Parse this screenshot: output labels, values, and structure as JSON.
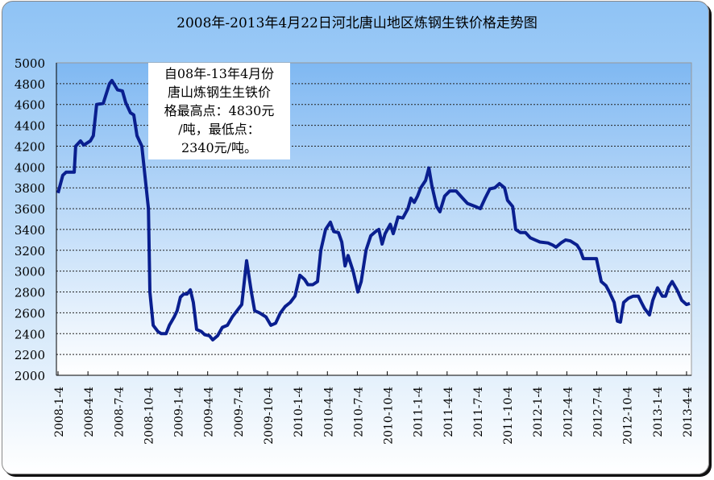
{
  "chart_data": {
    "type": "line",
    "title": "2008年-2013年4月22日河北唐山地区炼钢生铁价格走势图",
    "xlabel": "",
    "ylabel": "",
    "ylim": [
      2000,
      5000
    ],
    "yticks": [
      2000,
      2200,
      2400,
      2600,
      2800,
      3000,
      3200,
      3400,
      3600,
      3800,
      4000,
      4200,
      4400,
      4600,
      4800,
      5000
    ],
    "xtick_labels": [
      "2008-1-4",
      "2008-4-4",
      "2008-7-4",
      "2008-10-4",
      "2009-1-4",
      "2009-4-4",
      "2009-7-4",
      "2009-10-4",
      "2010-1-4",
      "2010-4-4",
      "2010-7-4",
      "2010-10-4",
      "2011-1-4",
      "2011-4-4",
      "2011-7-4",
      "2011-10-4",
      "2012-1-4",
      "2012-4-4",
      "2012-7-4",
      "2012-10-4",
      "2013-1-4",
      "2013-4-4"
    ],
    "x_unit": "quarters since 2008-1-4",
    "grid": "horizontal dashed",
    "series": [
      {
        "name": "炼钢生铁价格",
        "color": "#0a1f8f",
        "x": [
          0,
          0.16,
          0.27,
          0.54,
          0.59,
          0.75,
          0.86,
          1.08,
          1.18,
          1.29,
          1.51,
          1.72,
          1.8,
          1.99,
          2.15,
          2.26,
          2.42,
          2.53,
          2.64,
          2.8,
          2.91,
          3.02,
          3.07,
          3.18,
          3.34,
          3.45,
          3.61,
          3.72,
          3.88,
          3.98,
          4.09,
          4.2,
          4.31,
          4.42,
          4.52,
          4.63,
          4.79,
          4.9,
          5.06,
          5.17,
          5.33,
          5.49,
          5.66,
          5.82,
          5.98,
          6.14,
          6.3,
          6.46,
          6.57,
          6.73,
          6.95,
          7.11,
          7.27,
          7.43,
          7.59,
          7.76,
          7.92,
          8.08,
          8.24,
          8.35,
          8.51,
          8.67,
          8.78,
          8.94,
          9.1,
          9.21,
          9.37,
          9.48,
          9.59,
          9.69,
          9.86,
          10.02,
          10.13,
          10.29,
          10.45,
          10.61,
          10.72,
          10.83,
          10.93,
          11.1,
          11.2,
          11.36,
          11.52,
          11.69,
          11.79,
          11.9,
          12.01,
          12.12,
          12.28,
          12.39,
          12.49,
          12.65,
          12.76,
          12.92,
          13.09,
          13.3,
          13.52,
          13.68,
          13.95,
          14.11,
          14.27,
          14.43,
          14.59,
          14.75,
          14.92,
          15.02,
          15.19,
          15.29,
          15.45,
          15.62,
          15.78,
          15.94,
          16.1,
          16.37,
          16.53,
          16.64,
          16.8,
          16.96,
          17.12,
          17.34,
          17.45,
          17.55,
          17.72,
          17.99,
          18.15,
          18.31,
          18.42,
          18.58,
          18.69,
          18.79,
          18.9,
          19.06,
          19.22,
          19.39,
          19.49,
          19.6,
          19.76,
          19.87,
          20.03,
          20.19,
          20.3,
          20.41,
          20.52,
          20.68,
          20.84,
          21.0,
          21.11
        ],
        "y": [
          3750,
          3920,
          3950,
          3950,
          4200,
          4250,
          4210,
          4250,
          4300,
          4600,
          4610,
          4800,
          4830,
          4740,
          4730,
          4620,
          4520,
          4500,
          4300,
          4200,
          3900,
          3600,
          2800,
          2480,
          2420,
          2400,
          2400,
          2480,
          2560,
          2620,
          2750,
          2780,
          2780,
          2820,
          2700,
          2440,
          2420,
          2390,
          2380,
          2340,
          2380,
          2460,
          2480,
          2560,
          2620,
          2680,
          3100,
          2800,
          2620,
          2600,
          2560,
          2480,
          2500,
          2600,
          2660,
          2700,
          2760,
          2960,
          2920,
          2870,
          2870,
          2900,
          3200,
          3400,
          3470,
          3380,
          3370,
          3280,
          3050,
          3150,
          3000,
          2800,
          2900,
          3200,
          3340,
          3380,
          3400,
          3260,
          3360,
          3450,
          3360,
          3520,
          3510,
          3600,
          3700,
          3660,
          3720,
          3800,
          3870,
          3990,
          3820,
          3620,
          3570,
          3720,
          3770,
          3770,
          3700,
          3650,
          3620,
          3600,
          3700,
          3790,
          3800,
          3840,
          3800,
          3680,
          3620,
          3400,
          3370,
          3370,
          3320,
          3300,
          3280,
          3270,
          3250,
          3230,
          3270,
          3300,
          3290,
          3250,
          3200,
          3120,
          3120,
          3120,
          2900,
          2860,
          2800,
          2700,
          2520,
          2510,
          2700,
          2740,
          2760,
          2760,
          2700,
          2640,
          2580,
          2720,
          2840,
          2760,
          2760,
          2850,
          2900,
          2820,
          2720,
          2680,
          2690
        ]
      }
    ],
    "annotation": [
      "自08年-13年4月份",
      "唐山炼钢生生铁价",
      "格最高点：4830元",
      "/吨，最低点：",
      "2340元/吨。"
    ]
  }
}
